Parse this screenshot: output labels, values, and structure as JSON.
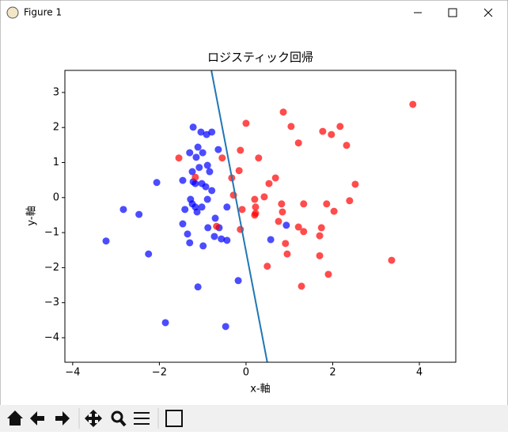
{
  "window": {
    "title": "Figure 1"
  },
  "chart_data": {
    "type": "scatter",
    "title": "ロジスティック回帰",
    "x_label": "x-軸",
    "y_label": "y-軸",
    "xlim": [
      -4.18,
      4.84
    ],
    "ylim": [
      -4.7,
      3.63
    ],
    "xticks": [
      {
        "value": -4,
        "label": "−4"
      },
      {
        "value": -2,
        "label": "−2"
      },
      0,
      2,
      4
    ],
    "yticks": [
      {
        "value": -4,
        "label": "−4"
      },
      {
        "value": -3,
        "label": "−3"
      },
      {
        "value": -2,
        "label": "−2"
      },
      {
        "value": -1,
        "label": "−1"
      },
      0,
      1,
      2,
      3
    ],
    "series": [
      {
        "color": "#0000ff",
        "x": [
          -1.22,
          -1.04,
          -0.91,
          -0.79,
          -1.11,
          -1.3,
          -1.0,
          -1.15,
          -0.64,
          -0.89,
          -1.08,
          -1.24,
          -0.84,
          -1.46,
          -1.22,
          -1.17,
          -1.02,
          -0.93,
          -2.06,
          -0.79,
          -1.28,
          -1.24,
          -0.89,
          -1.17,
          -1.41,
          -1.13,
          -1.02,
          -0.44,
          -0.71,
          -1.46,
          -0.88,
          -0.62,
          -1.35,
          -0.73,
          -0.57,
          -0.44,
          -3.23,
          -1.3,
          -0.99,
          0.57,
          0.93,
          -2.83,
          -2.47,
          -2.25,
          -1.11,
          -0.18,
          -1.86,
          -0.47
        ],
        "values": [
          2.01,
          1.87,
          1.8,
          1.87,
          1.44,
          1.28,
          1.28,
          1.15,
          1.37,
          0.92,
          0.86,
          0.74,
          0.74,
          0.49,
          0.45,
          0.4,
          0.4,
          0.31,
          0.43,
          0.2,
          -0.05,
          -0.18,
          -0.05,
          -0.27,
          -0.34,
          -0.41,
          -0.27,
          -0.27,
          -0.59,
          -0.75,
          -0.86,
          -0.86,
          -1.04,
          -1.11,
          -1.18,
          -1.22,
          -1.24,
          -1.29,
          -1.38,
          -1.2,
          -0.79,
          -0.34,
          -0.48,
          -1.61,
          -2.55,
          -2.37,
          -3.57,
          -3.68
        ]
      },
      {
        "color": "#ff0000",
        "x": [
          0.86,
          0.0,
          1.04,
          1.77,
          2.17,
          1.97,
          1.21,
          2.32,
          3.85,
          -1.55,
          -0.55,
          -0.13,
          0.29,
          -0.16,
          -0.33,
          0.68,
          0.53,
          2.52,
          -0.29,
          0.42,
          0.2,
          0.82,
          0.22,
          1.33,
          1.86,
          -0.09,
          2.03,
          2.39,
          0.22,
          0.84,
          0.2,
          0.75,
          -1.17,
          -0.68,
          -0.13,
          1.21,
          1.33,
          1.74,
          1.7,
          0.91,
          0.95,
          0.49,
          3.36,
          1.7,
          1.28,
          1.9
        ],
        "values": [
          2.44,
          2.12,
          2.03,
          1.89,
          2.03,
          1.8,
          1.56,
          1.49,
          2.66,
          1.13,
          1.13,
          1.35,
          1.13,
          0.77,
          0.56,
          0.56,
          0.4,
          0.38,
          0.07,
          0.02,
          -0.05,
          -0.18,
          -0.27,
          -0.18,
          -0.18,
          -0.34,
          -0.39,
          -0.09,
          -0.45,
          -0.41,
          -0.5,
          -0.68,
          0.58,
          -0.82,
          -0.91,
          -0.84,
          -0.97,
          -0.86,
          -1.09,
          -1.31,
          -1.61,
          -1.96,
          -1.79,
          -1.66,
          -2.53,
          -2.19
        ]
      }
    ],
    "line": {
      "color": "#1f77b4",
      "x": [
        -0.8,
        0.49
      ],
      "values": [
        3.63,
        -4.7
      ]
    }
  }
}
